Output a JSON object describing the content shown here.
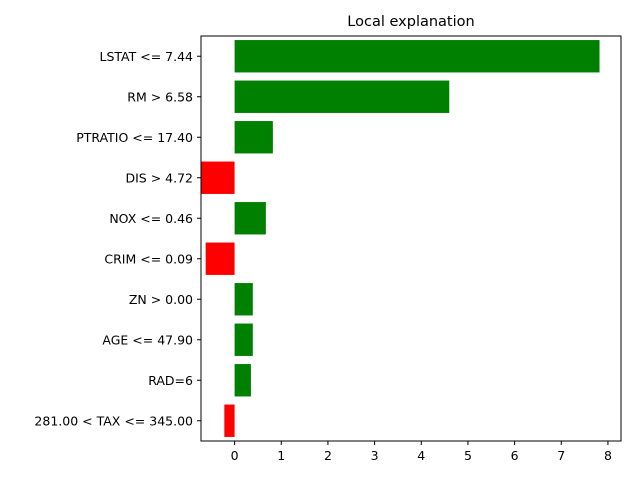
{
  "chart_data": {
    "type": "bar",
    "orientation": "horizontal",
    "title": "Local explanation",
    "xlabel": "",
    "ylabel": "",
    "xlim": [
      -0.72,
      8.28
    ],
    "x_ticks": [
      0,
      1,
      2,
      3,
      4,
      5,
      6,
      7,
      8
    ],
    "grid": false,
    "colors": {
      "positive": "#008000",
      "negative": "#ff0000"
    },
    "categories": [
      "LSTAT <= 7.44",
      "RM > 6.58",
      "PTRATIO <= 17.40",
      "DIS > 4.72",
      "NOX <= 0.46",
      "CRIM <= 0.09",
      "ZN > 0.00",
      "AGE <= 47.90",
      "RAD=6",
      "281.00 < TAX <= 345.00"
    ],
    "values": [
      7.82,
      4.6,
      0.82,
      -0.72,
      0.67,
      -0.62,
      0.39,
      0.39,
      0.35,
      -0.22
    ]
  }
}
